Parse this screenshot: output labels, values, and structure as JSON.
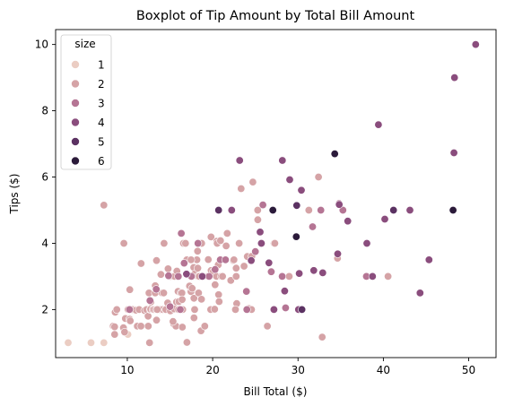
{
  "chart_data": {
    "type": "scatter",
    "title": "Boxplot of Tip Amount by Total Bill Amount",
    "xlabel": "Bill Total ($)",
    "ylabel": "Tips ($)",
    "xlim": [
      1.6,
      53.2
    ],
    "ylim": [
      0.55,
      10.45
    ],
    "xticks": [
      10,
      20,
      30,
      40,
      50
    ],
    "yticks": [
      2,
      4,
      6,
      8,
      10
    ],
    "grid": false,
    "legend": {
      "title": "size",
      "placement": "top-left",
      "entries": [
        "1",
        "2",
        "3",
        "4",
        "5",
        "6"
      ]
    },
    "hue_colors": {
      "1": "#ebcdc3",
      "2": "#d5a3a6",
      "3": "#b57594",
      "4": "#8a4d7d",
      "5": "#5b3262",
      "6": "#2b1a3a"
    },
    "series": [
      {
        "name": "1",
        "points": [
          [
            3.07,
            1.0
          ],
          [
            5.75,
            1.0
          ],
          [
            7.25,
            1.0
          ],
          [
            10.07,
            1.25
          ]
        ]
      },
      {
        "name": "2",
        "points": [
          [
            7.25,
            5.15
          ],
          [
            8.35,
            1.5
          ],
          [
            8.52,
            1.48
          ],
          [
            8.58,
            1.92
          ],
          [
            8.77,
            2.0
          ],
          [
            8.51,
            1.25
          ],
          [
            9.55,
            1.45
          ],
          [
            9.6,
            4.0
          ],
          [
            9.68,
            1.32
          ],
          [
            9.78,
            1.73
          ],
          [
            10.09,
            2.0
          ],
          [
            10.27,
            1.71
          ],
          [
            10.29,
            2.6
          ],
          [
            10.33,
            2.0
          ],
          [
            10.34,
            1.66
          ],
          [
            10.63,
            2.0
          ],
          [
            11.02,
            1.98
          ],
          [
            11.17,
            1.5
          ],
          [
            11.38,
            2.0
          ],
          [
            11.59,
            1.5
          ],
          [
            11.61,
            3.39
          ],
          [
            12.02,
            1.97
          ],
          [
            12.26,
            2.0
          ],
          [
            12.43,
            1.8
          ],
          [
            12.46,
            1.5
          ],
          [
            12.54,
            2.5
          ],
          [
            12.6,
            1.0
          ],
          [
            12.69,
            2.0
          ],
          [
            12.74,
            2.01
          ],
          [
            12.76,
            2.23
          ],
          [
            13.0,
            2.0
          ],
          [
            13.13,
            2.0
          ],
          [
            13.27,
            2.5
          ],
          [
            13.28,
            2.72
          ],
          [
            13.37,
            2.0
          ],
          [
            13.42,
            1.68
          ],
          [
            13.42,
            3.48
          ],
          [
            13.81,
            2.0
          ],
          [
            13.94,
            3.06
          ],
          [
            14.07,
            2.5
          ],
          [
            14.15,
            2.0
          ],
          [
            14.26,
            2.5
          ],
          [
            14.31,
            4.0
          ],
          [
            14.48,
            2.0
          ],
          [
            14.52,
            2.0
          ],
          [
            14.73,
            2.2
          ],
          [
            14.78,
            3.23
          ],
          [
            15.04,
            1.96
          ],
          [
            15.06,
            3.0
          ],
          [
            15.38,
            3.0
          ],
          [
            15.42,
            1.57
          ],
          [
            15.48,
            2.02
          ],
          [
            15.53,
            3.0
          ],
          [
            15.69,
            1.5
          ],
          [
            15.77,
            2.23
          ],
          [
            15.81,
            3.16
          ],
          [
            15.95,
            2.55
          ],
          [
            16.0,
            2.0
          ],
          [
            16.04,
            2.24
          ],
          [
            16.27,
            2.5
          ],
          [
            16.31,
            2.0
          ],
          [
            16.4,
            2.5
          ],
          [
            16.43,
            2.3
          ],
          [
            16.45,
            1.47
          ],
          [
            16.49,
            2.0
          ],
          [
            16.58,
            4.0
          ],
          [
            16.97,
            3.5
          ],
          [
            16.99,
            1.01
          ],
          [
            17.29,
            2.71
          ],
          [
            17.46,
            2.54
          ],
          [
            17.59,
            2.64
          ],
          [
            17.78,
            3.27
          ],
          [
            17.81,
            2.34
          ],
          [
            17.82,
            1.75
          ],
          [
            17.89,
            2.0
          ],
          [
            17.92,
            3.08
          ],
          [
            18.15,
            3.5
          ],
          [
            18.24,
            3.76
          ],
          [
            18.26,
            3.25
          ],
          [
            18.29,
            3.0
          ],
          [
            18.35,
            2.5
          ],
          [
            18.43,
            3.0
          ],
          [
            18.64,
            1.36
          ],
          [
            18.69,
            2.31
          ],
          [
            18.71,
            4.0
          ],
          [
            19.44,
            3.0
          ],
          [
            19.49,
            3.51
          ],
          [
            19.65,
            3.0
          ],
          [
            19.77,
            2.0
          ],
          [
            19.81,
            4.19
          ],
          [
            19.82,
            3.18
          ],
          [
            20.08,
            3.15
          ],
          [
            20.23,
            2.01
          ],
          [
            20.29,
            2.75
          ],
          [
            20.45,
            3.0
          ],
          [
            20.49,
            4.06
          ],
          [
            20.53,
            4.0
          ],
          [
            20.65,
            3.35
          ],
          [
            20.69,
            2.45
          ],
          [
            20.76,
            2.24
          ],
          [
            20.92,
            4.08
          ],
          [
            21.01,
            3.0
          ],
          [
            21.16,
            3.0
          ],
          [
            21.58,
            3.92
          ],
          [
            21.7,
            4.3
          ],
          [
            22.12,
            2.88
          ],
          [
            22.42,
            3.48
          ],
          [
            22.49,
            3.5
          ],
          [
            22.75,
            3.25
          ],
          [
            22.76,
            3.0
          ],
          [
            22.82,
            2.18
          ],
          [
            23.1,
            4.0
          ],
          [
            23.33,
            5.65
          ],
          [
            23.68,
            3.31
          ],
          [
            24.06,
            3.6
          ],
          [
            24.27,
            2.03
          ],
          [
            24.55,
            2.0
          ],
          [
            24.59,
            3.61
          ],
          [
            24.71,
            5.85
          ],
          [
            25.28,
            5.0
          ],
          [
            25.29,
            4.71
          ],
          [
            25.56,
            4.34
          ],
          [
            26.41,
            1.5
          ],
          [
            27.05,
            5.0
          ],
          [
            27.2,
            4.0
          ],
          [
            27.28,
            4.0
          ],
          [
            28.97,
            3.0
          ],
          [
            29.85,
            5.14
          ],
          [
            30.4,
            5.6
          ],
          [
            31.27,
            5.0
          ],
          [
            32.4,
            6.0
          ],
          [
            32.83,
            1.17
          ],
          [
            34.63,
            3.55
          ],
          [
            40.55,
            3.0
          ],
          [
            15.36,
            1.64
          ],
          [
            16.82,
            4.0
          ],
          [
            17.47,
            3.5
          ],
          [
            19.08,
            1.5
          ],
          [
            22.67,
            2.0
          ],
          [
            13.51,
            2.0
          ]
        ]
      },
      {
        "name": "3",
        "points": [
          [
            10.26,
            2.0
          ],
          [
            12.66,
            2.27
          ],
          [
            13.39,
            2.61
          ],
          [
            14.83,
            3.02
          ],
          [
            15.01,
            2.09
          ],
          [
            15.98,
            3.0
          ],
          [
            16.21,
            2.0
          ],
          [
            16.32,
            4.3
          ],
          [
            16.66,
            3.4
          ],
          [
            17.51,
            3.0
          ],
          [
            18.28,
            4.0
          ],
          [
            19.58,
            3.0
          ],
          [
            20.29,
            3.21
          ],
          [
            20.9,
            3.5
          ],
          [
            21.5,
            3.5
          ],
          [
            23.17,
            6.5
          ],
          [
            23.95,
            2.55
          ],
          [
            24.01,
            2.0
          ],
          [
            25.0,
            3.75
          ],
          [
            25.89,
            5.16
          ],
          [
            26.86,
            3.14
          ],
          [
            28.15,
            3.0
          ],
          [
            28.55,
            2.05
          ],
          [
            29.8,
            4.2
          ],
          [
            30.46,
            2.0
          ],
          [
            31.71,
            4.5
          ],
          [
            32.68,
            5.0
          ],
          [
            34.81,
            5.2
          ],
          [
            35.26,
            5.0
          ],
          [
            38.01,
            3.0
          ]
        ]
      },
      {
        "name": "4",
        "points": [
          [
            16.93,
            3.07
          ],
          [
            18.78,
            3.0
          ],
          [
            22.23,
            5.0
          ],
          [
            24.52,
            3.48
          ],
          [
            25.71,
            4.0
          ],
          [
            26.59,
            3.41
          ],
          [
            27.18,
            2.0
          ],
          [
            28.17,
            6.5
          ],
          [
            28.44,
            2.56
          ],
          [
            29.03,
            5.92
          ],
          [
            30.06,
            2.0
          ],
          [
            30.14,
            3.09
          ],
          [
            30.4,
            5.6
          ],
          [
            31.85,
            3.18
          ],
          [
            32.9,
            3.11
          ],
          [
            34.3,
            6.7
          ],
          [
            34.65,
            3.68
          ],
          [
            34.83,
            5.17
          ],
          [
            35.83,
            4.67
          ],
          [
            38.07,
            4.0
          ],
          [
            38.73,
            3.0
          ],
          [
            39.42,
            7.58
          ],
          [
            40.17,
            4.73
          ],
          [
            43.11,
            5.0
          ],
          [
            44.3,
            2.5
          ],
          [
            45.35,
            3.5
          ],
          [
            48.17,
            5.0
          ],
          [
            48.27,
            6.73
          ],
          [
            48.33,
            9.0
          ],
          [
            50.81,
            10.0
          ],
          [
            23.17,
            6.5
          ],
          [
            20.69,
            5.0
          ],
          [
            25.56,
            4.34
          ]
        ]
      },
      {
        "name": "5",
        "points": [
          [
            20.69,
            5.0
          ],
          [
            29.85,
            5.14
          ],
          [
            30.46,
            2.0
          ],
          [
            34.3,
            6.7
          ],
          [
            41.19,
            5.0
          ]
        ]
      },
      {
        "name": "6",
        "points": [
          [
            27.05,
            5.0
          ],
          [
            29.8,
            4.2
          ],
          [
            34.3,
            6.7
          ],
          [
            48.17,
            5.0
          ]
        ]
      }
    ]
  }
}
